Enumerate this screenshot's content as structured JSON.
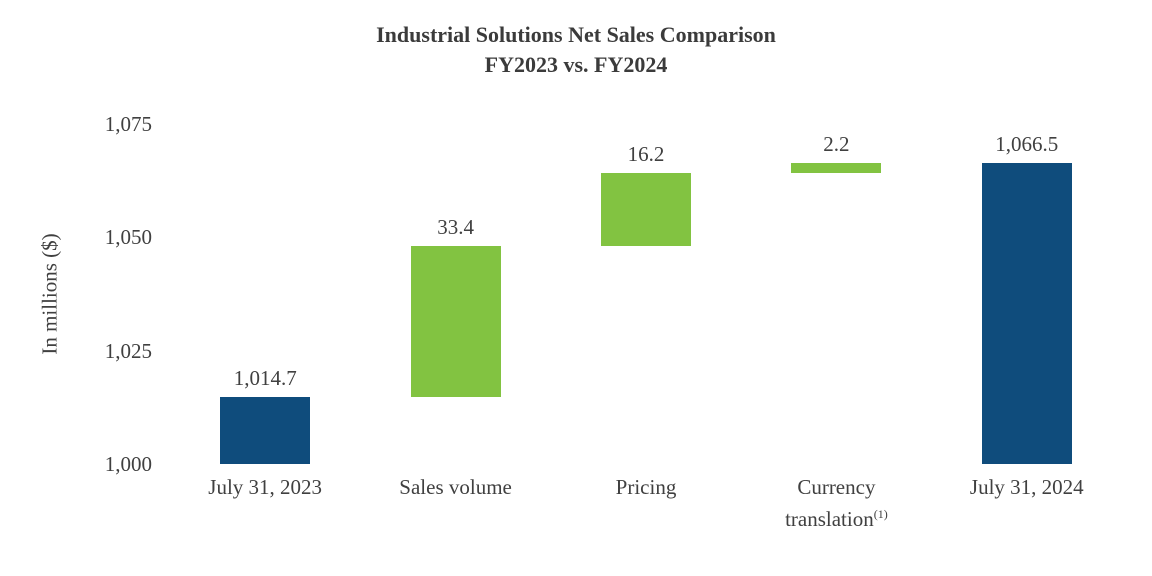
{
  "chart_data": {
    "type": "bar",
    "subtype": "waterfall",
    "title": "Industrial Solutions Net Sales Comparison",
    "subtitle": "FY2023 vs. FY2024",
    "ylabel": "In millions ($)",
    "xlabel": "",
    "ylim": [
      1000,
      1075
    ],
    "yticks": [
      1000,
      1025,
      1050,
      1075
    ],
    "ytick_labels": [
      "1,000",
      "1,025",
      "1,050",
      "1,075"
    ],
    "grid": false,
    "legend": "none",
    "colors": {
      "total": "#0f4c7c",
      "increase": "#82c341"
    },
    "bars": [
      {
        "category_lines": [
          "July 31, 2023"
        ],
        "sup": "",
        "value_label": "1,014.7",
        "start": 1000,
        "end": 1014.7,
        "role": "total"
      },
      {
        "category_lines": [
          "Sales volume"
        ],
        "sup": "",
        "value_label": "33.4",
        "start": 1014.7,
        "end": 1048.1,
        "role": "increase"
      },
      {
        "category_lines": [
          "Pricing"
        ],
        "sup": "",
        "value_label": "16.2",
        "start": 1048.1,
        "end": 1064.3,
        "role": "increase"
      },
      {
        "category_lines": [
          "Currency",
          "translation"
        ],
        "sup": "(1)",
        "value_label": "2.2",
        "start": 1064.3,
        "end": 1066.5,
        "role": "increase"
      },
      {
        "category_lines": [
          "July 31, 2024"
        ],
        "sup": "",
        "value_label": "1,066.5",
        "start": 1000,
        "end": 1066.5,
        "role": "total"
      }
    ]
  }
}
